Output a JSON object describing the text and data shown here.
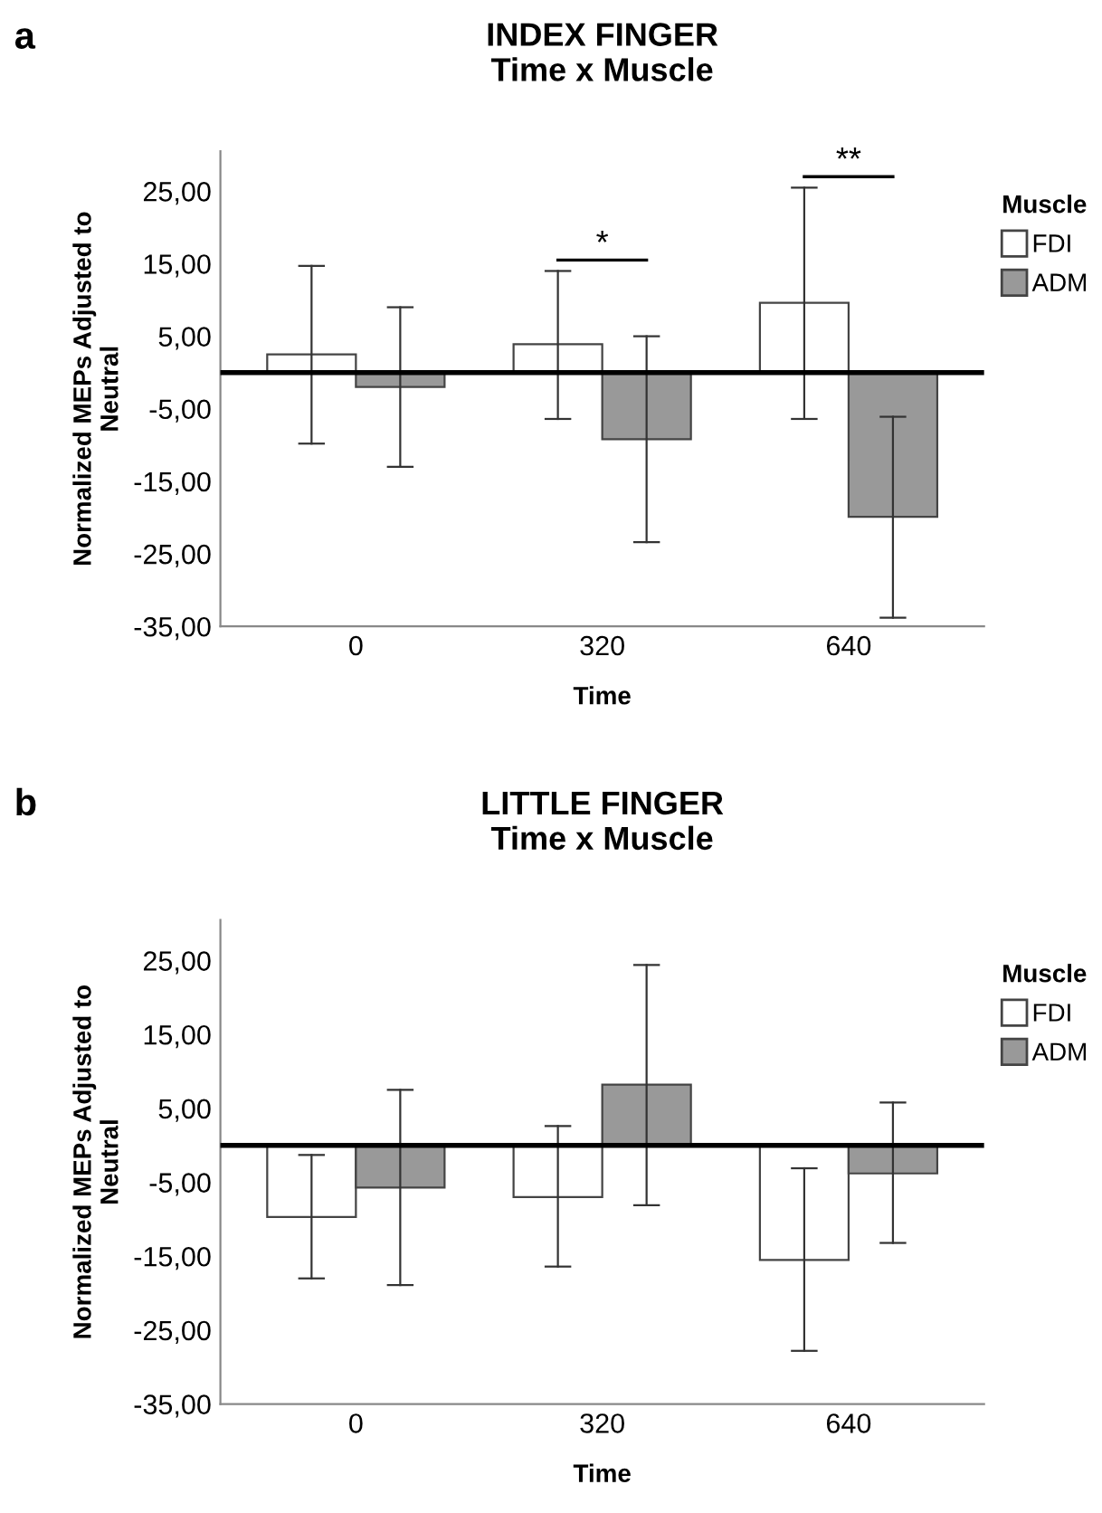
{
  "chart_data": [
    {
      "type": "bar",
      "title": "INDEX FINGER\nTime x Muscle",
      "xlabel": "Time",
      "ylabel": "Normalized MEPs Adjusted to\nNeutral",
      "legend_title": "Muscle",
      "legend": "right",
      "grid": false,
      "categories": [
        "0",
        "320",
        "640"
      ],
      "series": [
        {
          "name": "FDI",
          "color": "#ffffff",
          "values": [
            2.5,
            3.9,
            9.6
          ],
          "errors": [
            [
              -9.8,
              14.7
            ],
            [
              -6.4,
              14.0
            ],
            [
              -6.4,
              25.5
            ]
          ]
        },
        {
          "name": "ADM",
          "color": "#999999",
          "values": [
            -2.0,
            -9.2,
            -19.9
          ],
          "errors": [
            [
              -13.0,
              9.0
            ],
            [
              -23.4,
              5.0
            ],
            [
              -33.8,
              -6.1
            ]
          ]
        }
      ],
      "ylim": [
        -35,
        30.5
      ],
      "yticks": [
        {
          "value": 25,
          "label": "25,00"
        },
        {
          "value": 15,
          "label": "15,00"
        },
        {
          "value": 5,
          "label": "5,00"
        },
        {
          "value": -5,
          "label": "-5,00"
        },
        {
          "value": -15,
          "label": "-15,00"
        },
        {
          "value": -25,
          "label": "-25,00"
        },
        {
          "value": -35,
          "label": "-35,00"
        }
      ],
      "ref_lines": [
        {
          "axis": "y",
          "value": 0,
          "label": null,
          "color": "#000000"
        }
      ],
      "annotations": [
        "a",
        "*",
        "**"
      ]
    },
    {
      "type": "bar",
      "title": "LITTLE FINGER\nTime x Muscle",
      "xlabel": "Time",
      "ylabel": "Normalized MEPs Adjusted to\nNeutral",
      "legend_title": "Muscle",
      "legend": "right",
      "grid": false,
      "categories": [
        "0",
        "320",
        "640"
      ],
      "series": [
        {
          "name": "FDI",
          "color": "#ffffff",
          "values": [
            -9.7,
            -7.0,
            -15.5
          ],
          "errors": [
            [
              -18.0,
              -1.3
            ],
            [
              -16.4,
              2.6
            ],
            [
              -27.8,
              -3.1
            ]
          ]
        },
        {
          "name": "ADM",
          "color": "#999999",
          "values": [
            -5.7,
            8.2,
            -3.8
          ],
          "errors": [
            [
              -18.9,
              7.5
            ],
            [
              -8.1,
              24.4
            ],
            [
              -13.2,
              5.8
            ]
          ]
        }
      ],
      "ylim": [
        -35,
        30.5
      ],
      "yticks": [
        {
          "value": 25,
          "label": "25,00"
        },
        {
          "value": 15,
          "label": "15,00"
        },
        {
          "value": 5,
          "label": "5,00"
        },
        {
          "value": -5,
          "label": "-5,00"
        },
        {
          "value": -15,
          "label": "-15,00"
        },
        {
          "value": -25,
          "label": "-25,00"
        },
        {
          "value": -35,
          "label": "-35,00"
        }
      ],
      "ref_lines": [
        {
          "axis": "y",
          "value": 0,
          "label": null,
          "color": "#000000"
        }
      ],
      "annotations": [
        "b"
      ]
    }
  ]
}
